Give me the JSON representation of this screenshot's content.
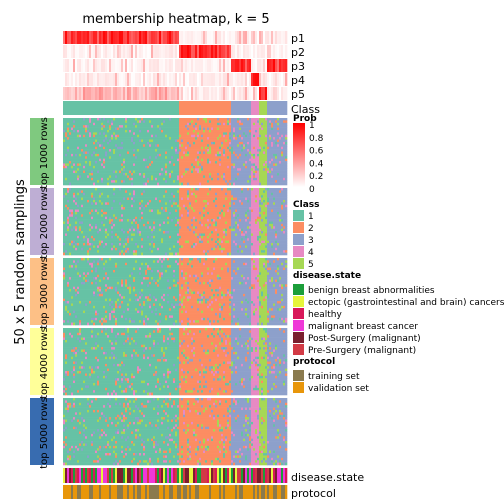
{
  "chart_data": {
    "type": "heatmap",
    "title": "membership heatmap, k = 5",
    "ylabel": "50 x 5 random samplings",
    "membership_rows": [
      "p1",
      "p2",
      "p3",
      "p4",
      "p5"
    ],
    "class_row_label": "Class",
    "row_groups": [
      {
        "label": "top 1000 rows",
        "color": "#7fc97f"
      },
      {
        "label": "top 2000 rows",
        "color": "#beaed4"
      },
      {
        "label": "top 3000 rows",
        "color": "#fdc086"
      },
      {
        "label": "top 4000 rows",
        "color": "#ffff99"
      },
      {
        "label": "top 5000 rows",
        "color": "#386cb0"
      }
    ],
    "column_segments": [
      {
        "class": "1",
        "fraction": 0.52
      },
      {
        "class": "2",
        "fraction": 0.23
      },
      {
        "class": "3",
        "fraction": 0.09
      },
      {
        "class": "4",
        "fraction": 0.04
      },
      {
        "class": "5",
        "fraction": 0.04
      },
      {
        "class": "3",
        "fraction": 0.08
      }
    ],
    "bottom_annotations": [
      "disease.state",
      "protocol"
    ],
    "legend": {
      "prob": {
        "title": "Prob",
        "ticks": [
          "1",
          "0.8",
          "0.6",
          "0.4",
          "0.2",
          "0"
        ],
        "color_low": "#ffffff",
        "color_high": "#ff0000"
      },
      "class": {
        "title": "Class",
        "items": [
          {
            "label": "1",
            "color": "#66c2a5"
          },
          {
            "label": "2",
            "color": "#fc8d62"
          },
          {
            "label": "3",
            "color": "#8da0cb"
          },
          {
            "label": "4",
            "color": "#e78ac3"
          },
          {
            "label": "5",
            "color": "#a6d854"
          }
        ]
      },
      "disease_state": {
        "title": "disease.state",
        "items": [
          {
            "label": "benign breast abnormalities",
            "color": "#1b9e3a"
          },
          {
            "label": "ectopic (gastrointestinal and brain) cancers",
            "color": "#e6f53c"
          },
          {
            "label": "healthy",
            "color": "#d8185a"
          },
          {
            "label": "malignant breast cancer",
            "color": "#ef38d8"
          },
          {
            "label": "Post-Surgery (malignant)",
            "color": "#7a1f2e"
          },
          {
            "label": "Pre-Surgery (malignant)",
            "color": "#d23a45"
          }
        ]
      },
      "protocol": {
        "title": "protocol",
        "items": [
          {
            "label": "training set",
            "color": "#8a7a4e"
          },
          {
            "label": "validation set",
            "color": "#e8960a"
          }
        ]
      }
    }
  }
}
